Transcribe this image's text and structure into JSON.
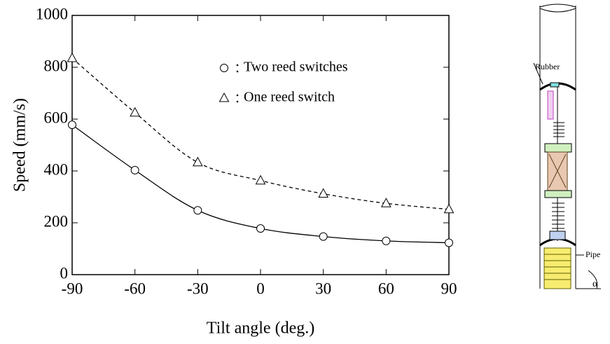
{
  "chart_data": {
    "type": "line",
    "x_label": "Tilt angle (deg.)",
    "y_label": "Speed (mm/s)",
    "xlim": [
      -90,
      90
    ],
    "xticks": [
      -90,
      -60,
      -30,
      0,
      30,
      60,
      90
    ],
    "ylim": [
      0,
      1000
    ],
    "yticks": [
      0,
      200,
      400,
      600,
      800,
      1000
    ],
    "x": [
      -90,
      -60,
      -30,
      0,
      30,
      60,
      90
    ],
    "legend": "upper right",
    "series": [
      {
        "name": "Two reed switches",
        "color": "#000000",
        "marker": "circle",
        "dashed": false,
        "values": [
          578,
          403,
          248,
          178,
          147,
          130,
          123
        ]
      },
      {
        "name": "One reed switch",
        "color": "#000000",
        "marker": "triangle",
        "dashed": true,
        "values": [
          835,
          625,
          433,
          363,
          312,
          275,
          252
        ]
      }
    ]
  },
  "diagram": {
    "labels": {
      "rubber": "Rubber",
      "pipe": "Pipe",
      "angle": "α"
    }
  }
}
